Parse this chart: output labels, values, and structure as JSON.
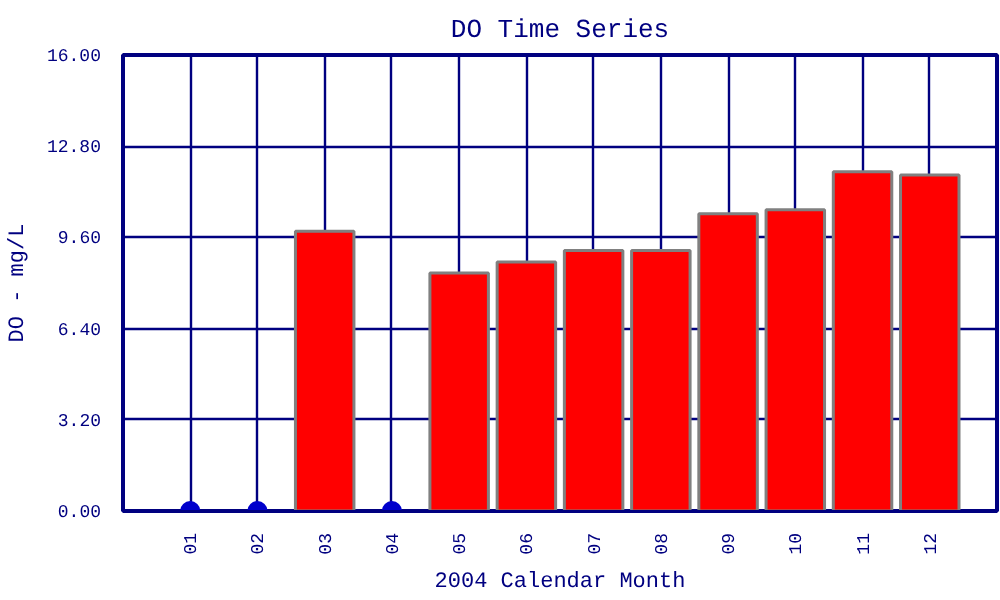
{
  "chart_data": {
    "type": "bar",
    "title": "DO Time Series",
    "xlabel": "2004 Calendar Month",
    "ylabel": "DO - mg/L",
    "categories": [
      "01",
      "02",
      "03",
      "04",
      "05",
      "06",
      "07",
      "08",
      "09",
      "10",
      "11",
      "12"
    ],
    "series": [
      {
        "color": "#ff0000",
        "values": [
          null,
          null,
          9.82,
          null,
          8.35,
          8.74,
          9.14,
          9.14,
          10.43,
          10.57,
          11.9,
          11.79
        ]
      },
      {
        "type": "scatter",
        "color": "#0000cc",
        "x": [
          "01",
          "02",
          "04"
        ],
        "values": [
          0,
          0,
          0
        ]
      }
    ],
    "ylim": [
      0,
      16
    ],
    "yticks": [
      {
        "value": 0,
        "label": "0.00"
      },
      {
        "value": 3.2,
        "label": "3.20"
      },
      {
        "value": 6.4,
        "label": "6.40"
      },
      {
        "value": 9.6,
        "label": "9.60"
      },
      {
        "value": 12.8,
        "label": "12.80"
      },
      {
        "value": 16,
        "label": "16.00"
      }
    ],
    "grid": true,
    "marker": "circle"
  }
}
